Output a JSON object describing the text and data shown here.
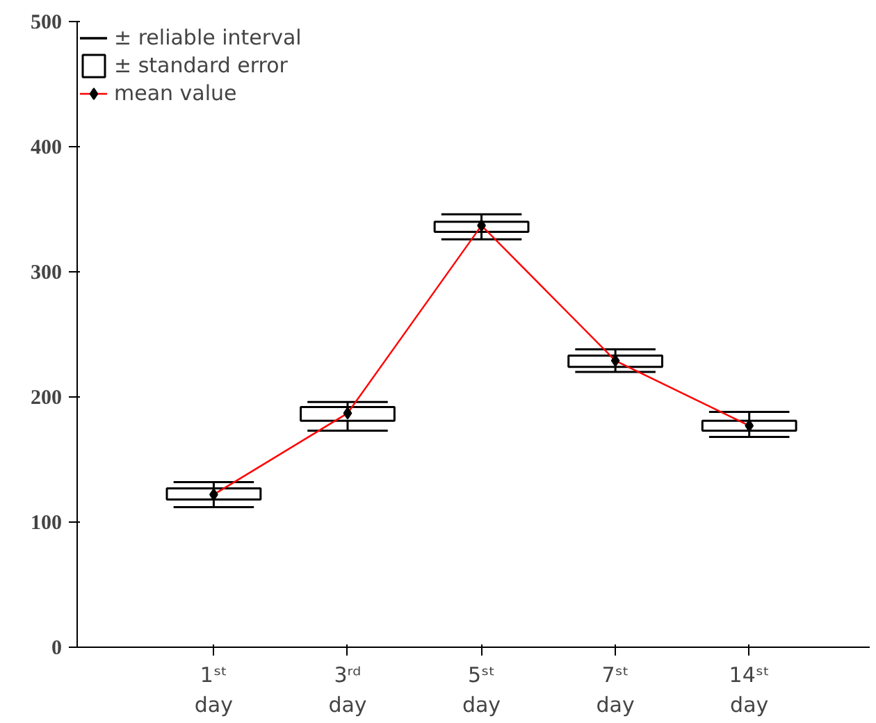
{
  "chart_data": {
    "type": "box",
    "categories": [
      "1ˢᵗ day",
      "3ʳᵈ day",
      "5ˢᵗ day",
      "7ˢᵗ day",
      "14ˢᵗ day"
    ],
    "annotations": [
      "± reliable interval"
    ],
    "ylim": [
      0,
      500
    ],
    "yticks": [
      0,
      100,
      200,
      300,
      400,
      500
    ],
    "grid": false,
    "legend": "top left",
    "series": [
      {
        "name": "± standard error",
        "color": "#000000",
        "boxes": [
          {
            "low": 112,
            "q1": 118,
            "median": 122,
            "q3": 127,
            "high": 132
          },
          {
            "low": 173,
            "q1": 181,
            "median": 187,
            "q3": 192,
            "high": 196
          },
          {
            "low": 326,
            "q1": 332,
            "median": 337,
            "q3": 340,
            "high": 346
          },
          {
            "low": 220,
            "q1": 224,
            "median": 229,
            "q3": 233,
            "high": 238
          },
          {
            "low": 168,
            "q1": 173,
            "median": 177,
            "q3": 181,
            "high": 188
          }
        ]
      },
      {
        "type": "line",
        "name": "mean value",
        "color": "#ff0000",
        "values": [
          122,
          187,
          337,
          229,
          177
        ]
      }
    ]
  }
}
